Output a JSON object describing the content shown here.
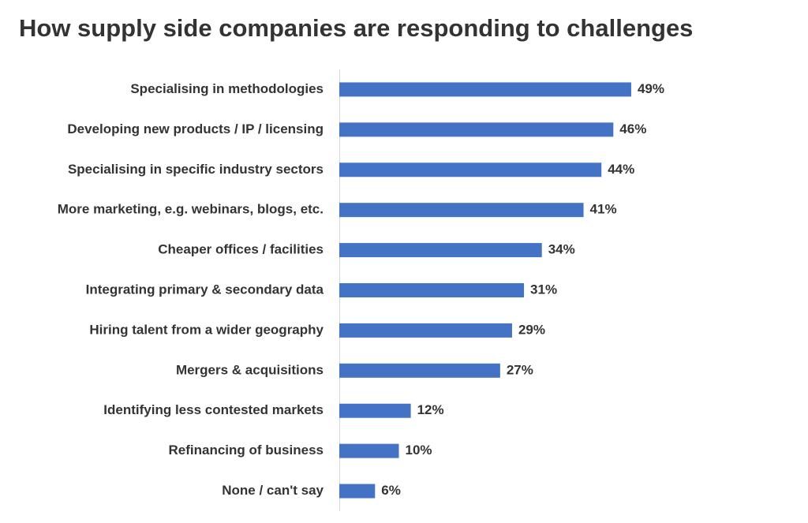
{
  "chart_data": {
    "type": "bar",
    "orientation": "horizontal",
    "title": "How supply side companies are responding to challenges",
    "categories": [
      "Specialising in methodologies",
      "Developing new products / IP / licensing",
      "Specialising in specific industry sectors",
      "More marketing, e.g. webinars, blogs, etc.",
      "Cheaper offices / facilities",
      "Integrating primary & secondary data",
      "Hiring talent from a wider geography",
      "Mergers & acquisitions",
      "Identifying less contested markets",
      "Refinancing of business",
      "None / can't say"
    ],
    "values": [
      49,
      46,
      44,
      41,
      34,
      31,
      29,
      27,
      12,
      10,
      6
    ],
    "value_labels": [
      "49%",
      "46%",
      "44%",
      "41%",
      "34%",
      "31%",
      "29%",
      "27%",
      "12%",
      "10%",
      "6%"
    ],
    "color": "#4472c4",
    "xlim": [
      0,
      60
    ]
  }
}
